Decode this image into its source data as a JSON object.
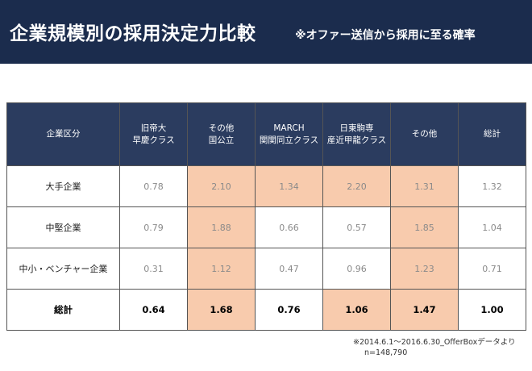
{
  "header": {
    "title": "企業規模別の採用決定力比較",
    "subtitle": "※オファー送信から採用に至る確率"
  },
  "table": {
    "columns": [
      "企業区分",
      "旧帝大\n早慶クラス",
      "その他\n国公立",
      "MARCH\n関関同立クラス",
      "日東駒専\n産近甲龍クラス",
      "その他",
      "総計"
    ],
    "rows": [
      {
        "label": "大手企業",
        "values": [
          "0.78",
          "2.10",
          "1.34",
          "2.20",
          "1.31",
          "1.32"
        ],
        "highlight": [
          false,
          true,
          true,
          true,
          true,
          false
        ]
      },
      {
        "label": "中堅企業",
        "values": [
          "0.79",
          "1.88",
          "0.66",
          "0.57",
          "1.85",
          "1.04"
        ],
        "highlight": [
          false,
          true,
          false,
          false,
          true,
          false
        ]
      },
      {
        "label": "中小・ベンチャー企業",
        "values": [
          "0.31",
          "1.12",
          "0.47",
          "0.96",
          "1.23",
          "0.71"
        ],
        "highlight": [
          false,
          true,
          false,
          false,
          true,
          false
        ]
      },
      {
        "label": "総計",
        "values": [
          "0.64",
          "1.68",
          "0.76",
          "1.06",
          "1.47",
          "1.00"
        ],
        "highlight": [
          false,
          true,
          false,
          true,
          true,
          false
        ]
      }
    ],
    "highlight_color": "#f8cbad",
    "header_color": "#2b3c5f"
  },
  "footnote": {
    "source": "※2014.6.1〜2016.6.30_OfferBoxデータより",
    "n": "n=148,790"
  }
}
